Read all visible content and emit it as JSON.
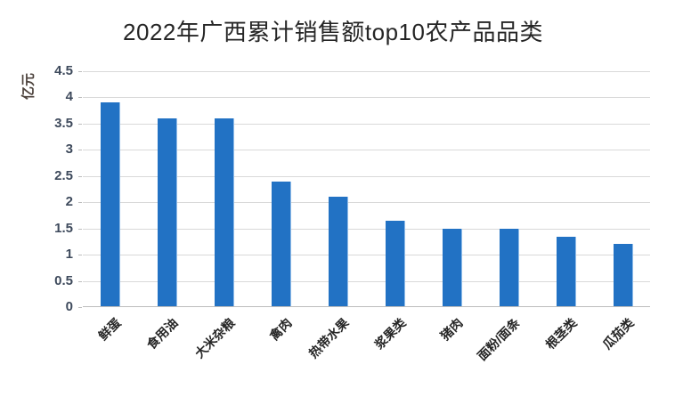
{
  "chart_data": {
    "type": "bar",
    "title": "2022年广西累计销售额top10农产品品类",
    "ylabel": "亿元",
    "xlabel": "",
    "categories": [
      "鲜蛋",
      "食用油",
      "大米杂粮",
      "禽肉",
      "热带水果",
      "浆果类",
      "猪肉",
      "面粉/面条",
      "根茎类",
      "瓜茄类"
    ],
    "values": [
      3.9,
      3.6,
      3.6,
      2.4,
      2.1,
      1.65,
      1.5,
      1.5,
      1.35,
      1.2
    ],
    "ylim": [
      0,
      4.5
    ],
    "ytick_step": 0.5,
    "ytick_labels": [
      "0",
      "0.5",
      "1",
      "1.5",
      "2",
      "2.5",
      "3",
      "3.5",
      "4",
      "4.5"
    ],
    "grid": "horizontal",
    "legend": "none",
    "colors": {
      "bar_fill": "#2272c4",
      "bar_edge": "#8fbbe8",
      "gridline": "#d9d9d9",
      "axis_line": "#bdbdbd",
      "tick_mark": "#bdbdbd",
      "title_text": "#262626",
      "ytick_text": "#3e4a5c",
      "xtick_text": "#262626",
      "ylabel_text": "#4c423c",
      "background": "#ffffff"
    }
  }
}
